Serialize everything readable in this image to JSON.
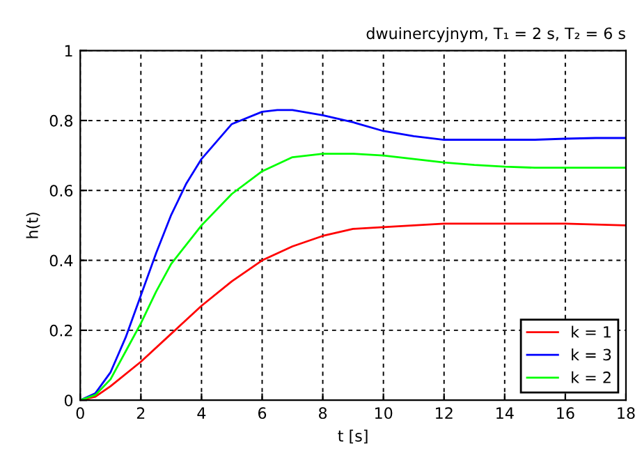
{
  "chart_data": {
    "type": "line",
    "title": "dwuinercyjnym, T₁ = 2 s, T₂ = 6 s",
    "xlabel": "t [s]",
    "ylabel": "h(t)",
    "xlim": [
      0,
      18
    ],
    "xticks": [
      0,
      2,
      4,
      6,
      8,
      10,
      12,
      14,
      16,
      18
    ],
    "ylim": [
      0,
      1
    ],
    "yticks": [
      0,
      0.2,
      0.4,
      0.6,
      0.8,
      1
    ],
    "grid": true,
    "legend": "bottom right",
    "marker": "none",
    "line_style": "solid",
    "series": [
      {
        "name": "k = 1",
        "color": "#ff0000",
        "x": [
          0,
          0.5,
          1,
          2,
          3,
          4,
          5,
          6,
          7,
          8,
          9,
          10,
          11,
          12,
          14,
          16,
          18
        ],
        "values": [
          0,
          0.01,
          0.04,
          0.11,
          0.19,
          0.27,
          0.34,
          0.4,
          0.44,
          0.47,
          0.49,
          0.495,
          0.5,
          0.505,
          0.505,
          0.505,
          0.5
        ]
      },
      {
        "name": "k = 3",
        "color": "#0000ff",
        "x": [
          0,
          0.5,
          1,
          1.5,
          2,
          2.5,
          3,
          3.5,
          4,
          5,
          6,
          6.5,
          7,
          8,
          9,
          10,
          11,
          12,
          13,
          14,
          15,
          16,
          17,
          18
        ],
        "values": [
          0,
          0.02,
          0.08,
          0.18,
          0.3,
          0.42,
          0.53,
          0.62,
          0.69,
          0.79,
          0.825,
          0.83,
          0.83,
          0.815,
          0.795,
          0.77,
          0.755,
          0.745,
          0.745,
          0.745,
          0.745,
          0.748,
          0.75,
          0.75
        ]
      },
      {
        "name": "k = 2",
        "color": "#00ff00",
        "x": [
          0,
          0.5,
          1,
          1.5,
          2,
          2.5,
          3,
          4,
          5,
          6,
          7,
          8,
          9,
          10,
          11,
          12,
          13,
          14,
          15,
          16,
          18
        ],
        "values": [
          0,
          0.015,
          0.06,
          0.14,
          0.22,
          0.31,
          0.39,
          0.5,
          0.59,
          0.655,
          0.695,
          0.705,
          0.705,
          0.7,
          0.69,
          0.68,
          0.673,
          0.668,
          0.665,
          0.665,
          0.665
        ]
      }
    ]
  }
}
